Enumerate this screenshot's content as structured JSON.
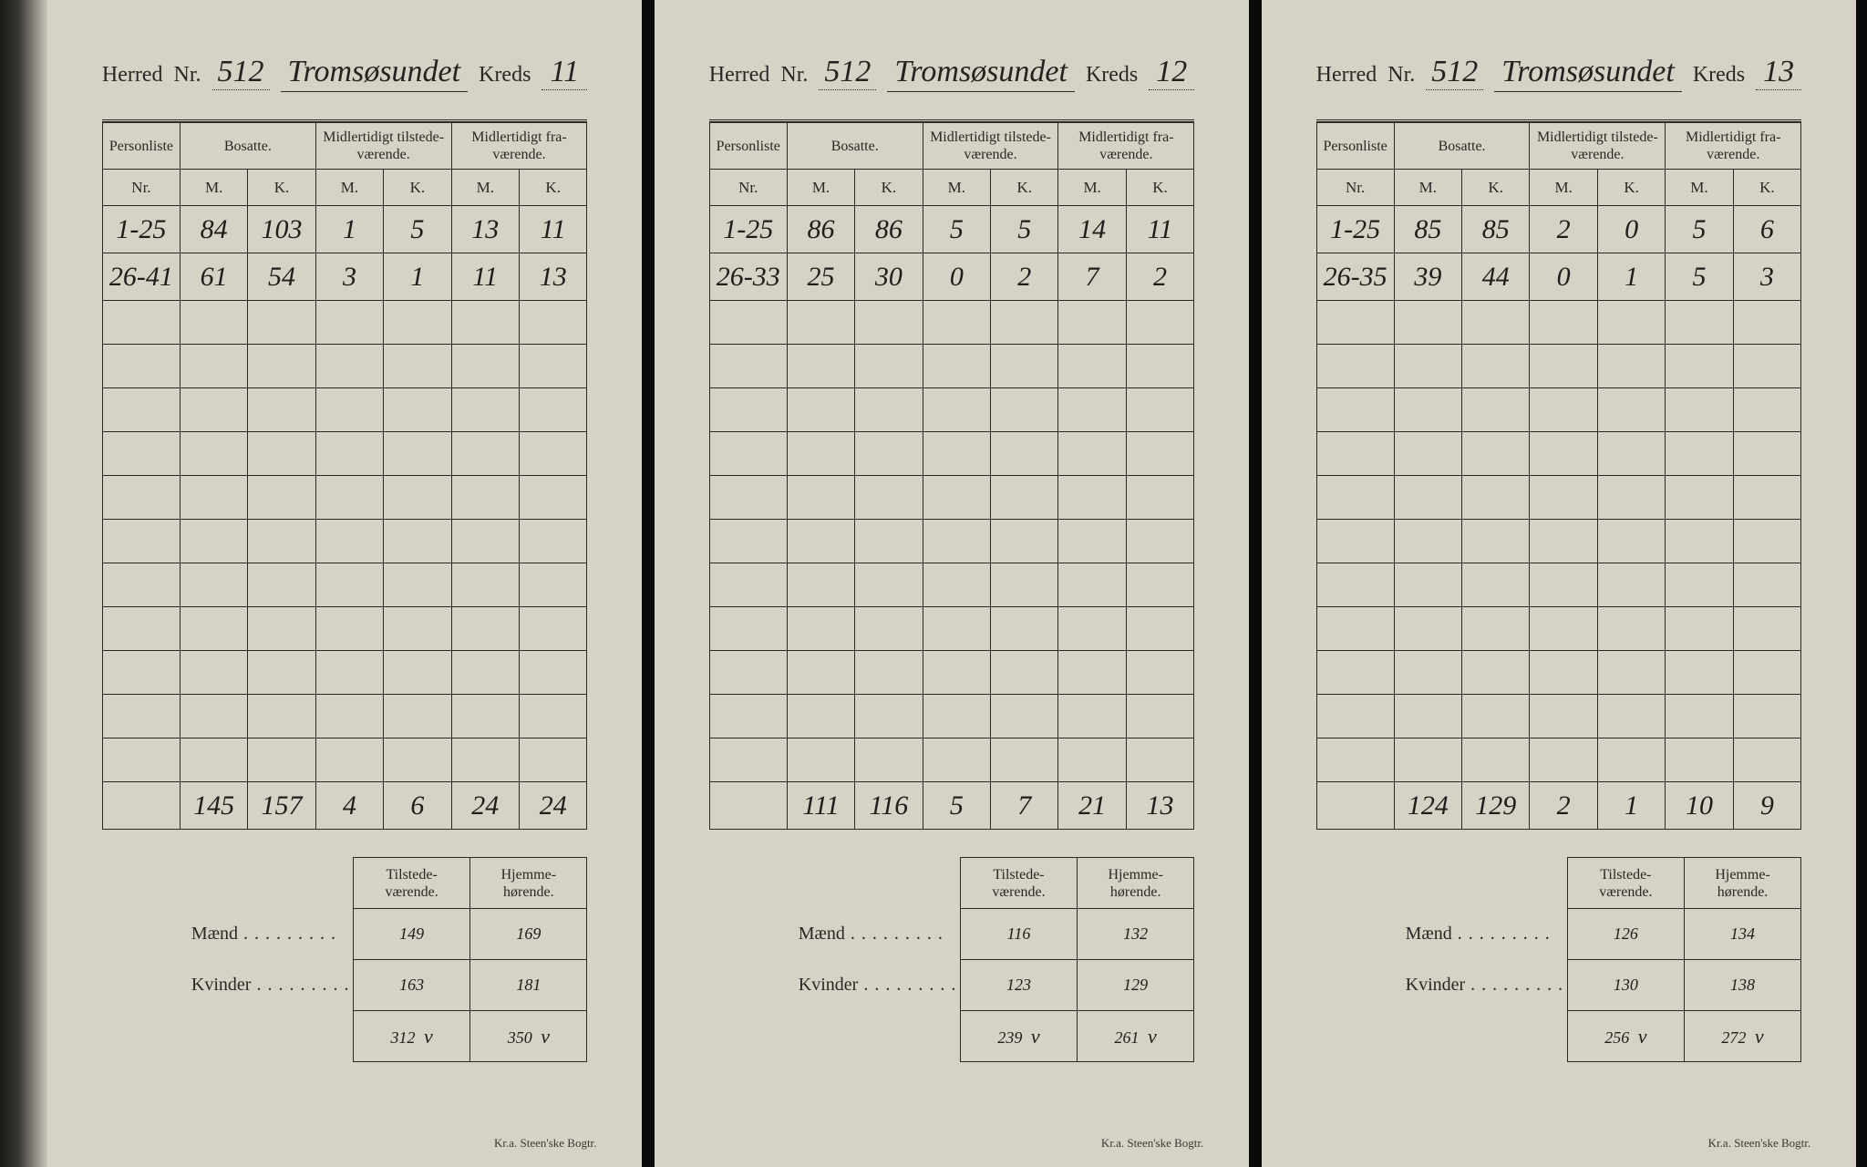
{
  "colors": {
    "paper": "#d6d2c6",
    "ink": "#2a2824",
    "handwriting": "#1f1d1a",
    "background": "#0a0a0a"
  },
  "typography": {
    "printed_font": "Georgia, serif",
    "hand_font": "'Brush Script MT', cursive",
    "header_label_size_pt": 18,
    "hand_header_size_pt": 26,
    "table_header_size_pt": 12,
    "hand_cell_size_pt": 22
  },
  "labels": {
    "herred": "Herred",
    "nr": "Nr.",
    "kreds": "Kreds",
    "personliste": "Personliste",
    "personliste_nr": "Nr.",
    "bosatte": "Bosatte.",
    "tilstede": "Midlertidigt tilstede-\nværende.",
    "fravaer": "Midlertidigt fra-\nværende.",
    "m": "M.",
    "k": "K.",
    "sum_tilstede": "Tilstede-\nværende.",
    "sum_hjemme": "Hjemme-\nhørende.",
    "maend": "Mænd",
    "kvinder": "Kvinder",
    "printer": "Kr.a.  Steen'ske Bogtr."
  },
  "table_layout": {
    "total_blank_rows": 11,
    "col_widths_pct": [
      16,
      14,
      14,
      14,
      14,
      14,
      14
    ]
  },
  "cards": [
    {
      "herred_nr": "512",
      "place": "Tromsøsundet",
      "kreds": "11",
      "rows": [
        {
          "nr": "1-25",
          "bos_m": "84",
          "bos_k": "103",
          "til_m": "1",
          "til_k": "5",
          "fra_m": "13",
          "fra_k": "11"
        },
        {
          "nr": "26-41",
          "bos_m": "61",
          "bos_k": "54",
          "til_m": "3",
          "til_k": "1",
          "fra_m": "11",
          "fra_k": "13"
        }
      ],
      "totals": {
        "bos_m": "145",
        "bos_k": "157",
        "til_m": "4",
        "til_k": "6",
        "fra_m": "24",
        "fra_k": "24"
      },
      "summary": {
        "maend": {
          "tilstede": "149",
          "hjemme": "169"
        },
        "kvinder": {
          "tilstede": "163",
          "hjemme": "181"
        },
        "total": {
          "tilstede": "312",
          "hjemme": "350",
          "check_t": "v",
          "check_h": "v"
        }
      }
    },
    {
      "herred_nr": "512",
      "place": "Tromsøsundet",
      "kreds": "12",
      "rows": [
        {
          "nr": "1-25",
          "bos_m": "86",
          "bos_k": "86",
          "til_m": "5",
          "til_k": "5",
          "fra_m": "14",
          "fra_k": "11"
        },
        {
          "nr": "26-33",
          "bos_m": "25",
          "bos_k": "30",
          "til_m": "0",
          "til_k": "2",
          "fra_m": "7",
          "fra_k": "2"
        }
      ],
      "totals": {
        "bos_m": "111",
        "bos_k": "116",
        "til_m": "5",
        "til_k": "7",
        "fra_m": "21",
        "fra_k": "13"
      },
      "summary": {
        "maend": {
          "tilstede": "116",
          "hjemme": "132"
        },
        "kvinder": {
          "tilstede": "123",
          "hjemme": "129"
        },
        "total": {
          "tilstede": "239",
          "hjemme": "261",
          "check_t": "v",
          "check_h": "v"
        }
      }
    },
    {
      "herred_nr": "512",
      "place": "Tromsøsundet",
      "kreds": "13",
      "rows": [
        {
          "nr": "1-25",
          "bos_m": "85",
          "bos_k": "85",
          "til_m": "2",
          "til_k": "0",
          "fra_m": "5",
          "fra_k": "6"
        },
        {
          "nr": "26-35",
          "bos_m": "39",
          "bos_k": "44",
          "til_m": "0",
          "til_k": "1",
          "fra_m": "5",
          "fra_k": "3"
        }
      ],
      "totals": {
        "bos_m": "124",
        "bos_k": "129",
        "til_m": "2",
        "til_k": "1",
        "fra_m": "10",
        "fra_k": "9"
      },
      "summary": {
        "maend": {
          "tilstede": "126",
          "hjemme": "134"
        },
        "kvinder": {
          "tilstede": "130",
          "hjemme": "138"
        },
        "total": {
          "tilstede": "256",
          "hjemme": "272",
          "check_t": "v",
          "check_h": "v"
        }
      }
    }
  ]
}
